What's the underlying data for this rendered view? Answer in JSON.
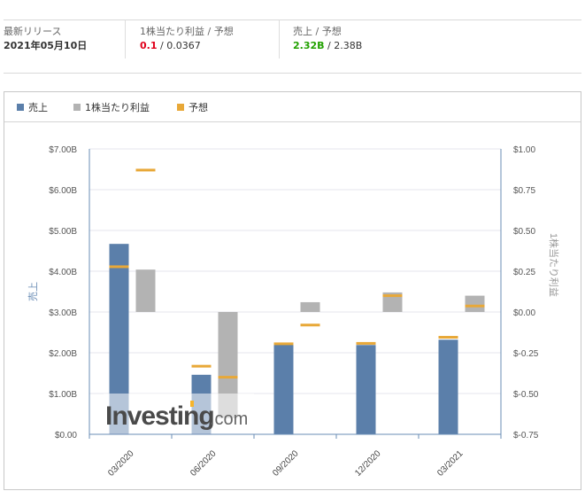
{
  "summary": {
    "latest_release": {
      "label": "最新リリース",
      "value": "2021年05月10日"
    },
    "eps": {
      "label": "1株当たり利益 / 予想",
      "actual": "0.1",
      "separator": " / ",
      "forecast": "0.0367",
      "actual_color": "#e0001b"
    },
    "revenue": {
      "label": "売上 / 予想",
      "actual": "2.32B",
      "separator": " / ",
      "forecast": "2.38B",
      "actual_color": "#22a100"
    }
  },
  "legend": {
    "revenue": {
      "label": "売上",
      "color": "#5b7faa"
    },
    "eps": {
      "label": "1株当たり利益",
      "color": "#b3b3b3"
    },
    "forecast": {
      "label": "予想",
      "color": "#e8a838"
    }
  },
  "axes": {
    "left_label": "売上",
    "right_label": "1株当たり利益",
    "left_ticks": [
      "$7.00B",
      "$6.00B",
      "$5.00B",
      "$4.00B",
      "$3.00B",
      "$2.00B",
      "$1.00B",
      "$0.00"
    ],
    "right_ticks": [
      "$1.00",
      "$0.75",
      "$0.50",
      "$0.25",
      "$0.00",
      "$-0.25",
      "$-0.50",
      "$-0.75"
    ],
    "categories": [
      "03/2020",
      "06/2020",
      "09/2020",
      "12/2020",
      "03/2021"
    ]
  },
  "watermark": {
    "brand": "Investing",
    "suffix": ".com"
  },
  "chart_data": {
    "type": "bar",
    "title": "",
    "categories": [
      "03/2020",
      "06/2020",
      "09/2020",
      "12/2020",
      "03/2021"
    ],
    "series": [
      {
        "name": "売上",
        "axis": "left",
        "unit": "B USD",
        "values": [
          4.67,
          1.46,
          2.2,
          2.19,
          2.32
        ],
        "forecast": [
          4.11,
          1.67,
          2.22,
          2.23,
          2.38
        ]
      },
      {
        "name": "1株当たり利益",
        "axis": "right",
        "unit": "USD",
        "values": [
          0.26,
          -0.65,
          0.06,
          0.12,
          0.1
        ],
        "forecast": [
          0.87,
          -0.4,
          -0.08,
          0.1,
          0.0367
        ]
      }
    ],
    "legend": [
      "売上",
      "1株当たり利益",
      "予想"
    ],
    "ylabel_left": "売上",
    "ylabel_right": "1株当たり利益",
    "ylim_left": [
      0,
      7
    ],
    "ylim_right": [
      -0.75,
      1.0
    ],
    "grid": true,
    "legend_position": "top-left"
  }
}
